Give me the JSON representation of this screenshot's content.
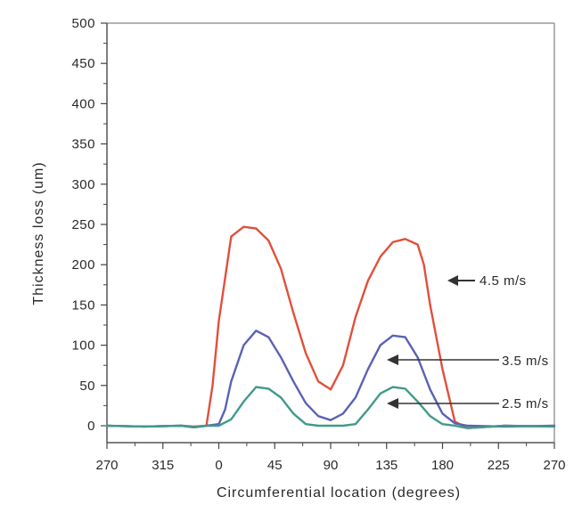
{
  "chart_data": {
    "type": "line",
    "xlabel": "Circumferential  location (degrees)",
    "ylabel": "Thickness  loss (um)",
    "x_ticks": [
      "270",
      "315",
      "0",
      "45",
      "90",
      "135",
      "180",
      "225",
      "270"
    ],
    "y_ticks": [
      "0",
      "50",
      "100",
      "150",
      "200",
      "250",
      "300",
      "350",
      "400",
      "450",
      "500"
    ],
    "xlim": [
      -90,
      270
    ],
    "ylim": [
      -20,
      500
    ],
    "grid": false,
    "series": [
      {
        "name": "4.5 m/s",
        "color": "#e0503c",
        "x": [
          -90,
          -60,
          -30,
          -20,
          -10,
          -5,
          0,
          10,
          20,
          30,
          40,
          50,
          60,
          70,
          80,
          90,
          100,
          110,
          120,
          130,
          140,
          150,
          160,
          165,
          170,
          180,
          190,
          200,
          230,
          270
        ],
        "values": [
          0,
          -1,
          0,
          -1,
          0,
          50,
          130,
          235,
          247,
          245,
          230,
          195,
          140,
          90,
          55,
          45,
          75,
          135,
          180,
          210,
          228,
          232,
          225,
          200,
          150,
          70,
          5,
          -3,
          0,
          -1
        ]
      },
      {
        "name": "3.5 m/s",
        "color": "#5a62b4",
        "x": [
          -90,
          -60,
          -30,
          -20,
          -10,
          0,
          5,
          10,
          20,
          30,
          40,
          50,
          60,
          70,
          80,
          90,
          100,
          110,
          120,
          130,
          140,
          150,
          160,
          170,
          180,
          190,
          200,
          230,
          270
        ],
        "values": [
          0,
          -1,
          0,
          -2,
          0,
          2,
          20,
          55,
          100,
          118,
          110,
          85,
          55,
          28,
          12,
          7,
          15,
          35,
          70,
          100,
          112,
          110,
          85,
          45,
          15,
          3,
          0,
          -1,
          0
        ]
      },
      {
        "name": "2.5 m/s",
        "color": "#3f9a8a",
        "x": [
          -90,
          -60,
          -30,
          -20,
          -10,
          0,
          10,
          20,
          30,
          40,
          50,
          60,
          70,
          80,
          90,
          100,
          110,
          120,
          130,
          140,
          150,
          160,
          170,
          180,
          190,
          200,
          230,
          270
        ],
        "values": [
          0,
          -1,
          0,
          -2,
          0,
          0,
          8,
          30,
          48,
          46,
          35,
          15,
          2,
          0,
          0,
          0,
          2,
          20,
          40,
          48,
          46,
          30,
          12,
          2,
          0,
          -3,
          0,
          -1
        ]
      }
    ],
    "annotations": [
      "4.5 m/s",
      "3.5 m/s",
      "2.5 m/s"
    ]
  }
}
